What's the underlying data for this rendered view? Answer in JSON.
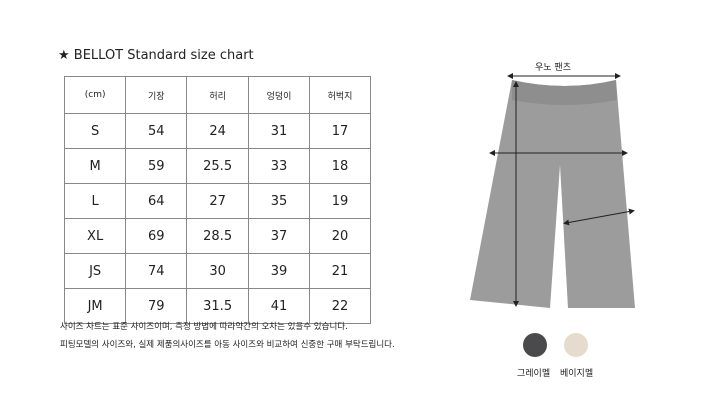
{
  "title": "★ BELLOT Standard size chart",
  "table": {
    "headers": [
      "(cm)",
      "기장",
      "허리",
      "엉덩이",
      "허벅지"
    ],
    "rows": [
      [
        "S",
        "54",
        "24",
        "31",
        "17"
      ],
      [
        "M",
        "59",
        "25.5",
        "33",
        "18"
      ],
      [
        "L",
        "64",
        "27",
        "35",
        "19"
      ],
      [
        "XL",
        "69",
        "28.5",
        "37",
        "20"
      ],
      [
        "JS",
        "74",
        "30",
        "39",
        "21"
      ],
      [
        "JM",
        "79",
        "31.5",
        "41",
        "22"
      ]
    ]
  },
  "notes": [
    "사이즈 차트는 표준 사이즈이며, 측정 방법에 따라약간의 오차는 있을수 있습니다.",
    "피팅모델의 사이즈와, 실제 제품의사이즈를 아동 사이즈와 비교하여 신중한 구매 부탁드립니다."
  ],
  "product": {
    "name": "우노 팬츠",
    "pants_color": "#9c9c9c"
  },
  "colors": [
    {
      "label": "그레이멜",
      "hex": "#4a4a4c"
    },
    {
      "label": "베이지멜",
      "hex": "#e6dccd"
    }
  ]
}
